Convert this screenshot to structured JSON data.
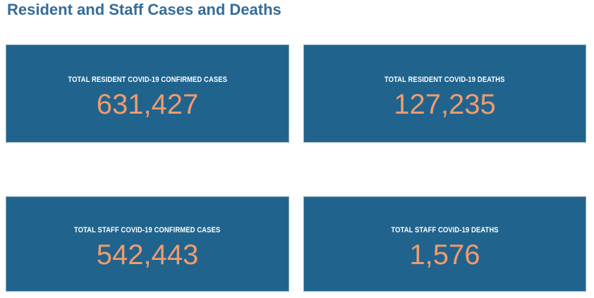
{
  "page": {
    "title": "Resident and Staff Cases and Deaths"
  },
  "colors": {
    "page_background": "#FFFFFF",
    "title": "#346C99",
    "card_background": "#20648E",
    "card_border": "#8CA7BA",
    "label_text": "#FFFFFF",
    "value_text": "#F09B6F"
  },
  "cards": [
    {
      "label": "TOTAL RESIDENT COVID-19 CONFIRMED CASES",
      "value": "631,427"
    },
    {
      "label": "TOTAL RESIDENT COVID-19 DEATHS",
      "value": "127,235"
    },
    {
      "label": "TOTAL STAFF COVID-19 CONFIRMED CASES",
      "value": "542,443"
    },
    {
      "label": "TOTAL STAFF COVID-19 DEATHS",
      "value": "1,576"
    }
  ],
  "chart_data": {
    "type": "table",
    "title": "Resident and Staff Cases and Deaths",
    "categories": [
      "Total Resident COVID-19 Confirmed Cases",
      "Total Resident COVID-19 Deaths",
      "Total Staff COVID-19 Confirmed Cases",
      "Total Staff COVID-19 Deaths"
    ],
    "values": [
      631427,
      127235,
      542443,
      1576
    ],
    "layout": "2x2 KPI tile grid",
    "legend": "off",
    "grid": "off"
  }
}
